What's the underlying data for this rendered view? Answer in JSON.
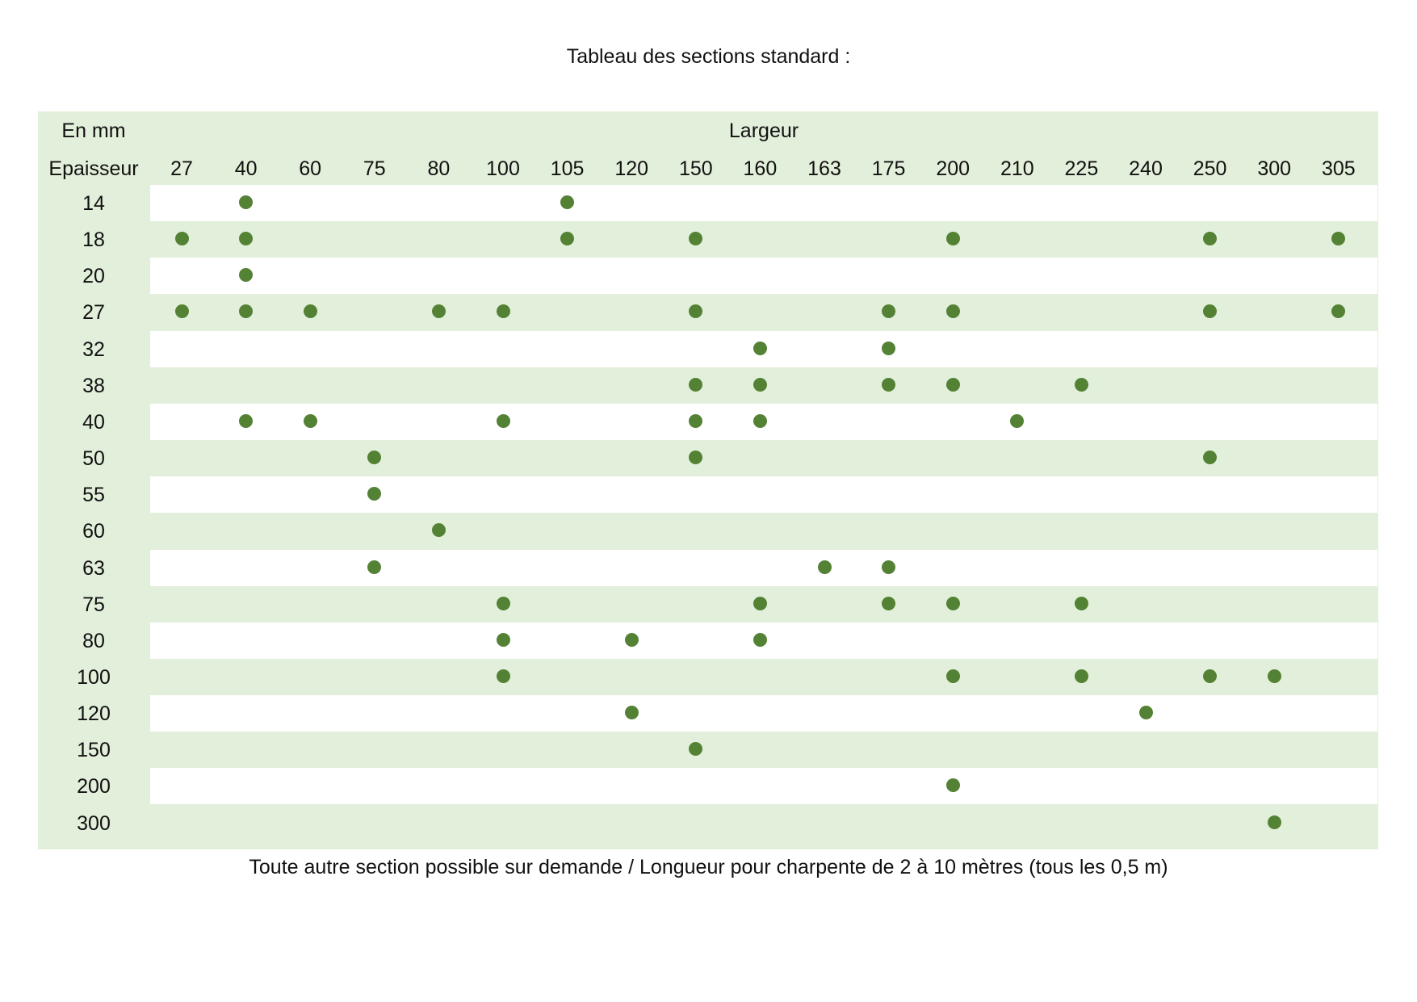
{
  "title": "Tableau des sections standard :",
  "table": {
    "corner_top": "En mm",
    "corner_bottom": "Epaisseur",
    "largeur_label": "Largeur",
    "widths": [
      "27",
      "40",
      "60",
      "75",
      "80",
      "100",
      "105",
      "120",
      "150",
      "160",
      "163",
      "175",
      "200",
      "210",
      "225",
      "240",
      "250",
      "300",
      "305"
    ],
    "rows": [
      {
        "thickness": "14",
        "available": [
          "40",
          "105"
        ]
      },
      {
        "thickness": "18",
        "available": [
          "27",
          "40",
          "105",
          "150",
          "200",
          "250",
          "305"
        ]
      },
      {
        "thickness": "20",
        "available": [
          "40"
        ]
      },
      {
        "thickness": "27",
        "available": [
          "27",
          "40",
          "60",
          "80",
          "100",
          "150",
          "175",
          "200",
          "250",
          "305"
        ]
      },
      {
        "thickness": "32",
        "available": [
          "160",
          "175"
        ]
      },
      {
        "thickness": "38",
        "available": [
          "150",
          "160",
          "175",
          "200",
          "225"
        ]
      },
      {
        "thickness": "40",
        "available": [
          "40",
          "60",
          "100",
          "150",
          "160",
          "210"
        ]
      },
      {
        "thickness": "50",
        "available": [
          "75",
          "150",
          "250"
        ]
      },
      {
        "thickness": "55",
        "available": [
          "75"
        ]
      },
      {
        "thickness": "60",
        "available": [
          "80"
        ]
      },
      {
        "thickness": "63",
        "available": [
          "75",
          "163",
          "175"
        ]
      },
      {
        "thickness": "75",
        "available": [
          "100",
          "160",
          "175",
          "200",
          "225"
        ]
      },
      {
        "thickness": "80",
        "available": [
          "100",
          "120",
          "160"
        ]
      },
      {
        "thickness": "100",
        "available": [
          "100",
          "200",
          "225",
          "250",
          "300"
        ]
      },
      {
        "thickness": "120",
        "available": [
          "120",
          "240"
        ]
      },
      {
        "thickness": "150",
        "available": [
          "150"
        ]
      },
      {
        "thickness": "200",
        "available": [
          "200"
        ]
      },
      {
        "thickness": "300",
        "available": [
          "300"
        ]
      }
    ]
  },
  "footer": "Toute autre section possible sur demande / Longueur pour charpente de 2 à 10 mètres (tous les 0,5 m)",
  "colors": {
    "band_green": "#e2efda",
    "band_white": "#ffffff",
    "dot": "#548235"
  }
}
